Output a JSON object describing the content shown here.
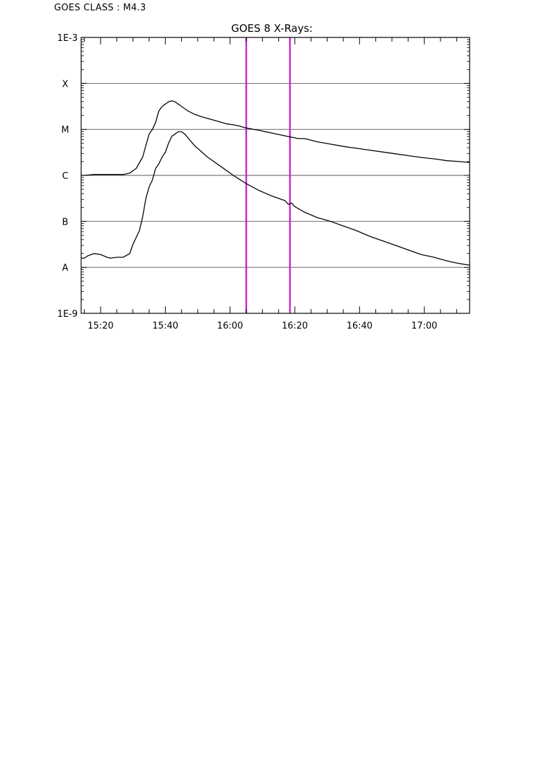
{
  "goes_class": {
    "label": "GOES CLASS : M4.3"
  },
  "chart_data": {
    "type": "line",
    "title": "GOES 8 X-Rays:",
    "xlabel": "",
    "ylabel": "",
    "x_tick_labels": [
      "15:20",
      "15:40",
      "16:00",
      "16:20",
      "16:40",
      "17:00"
    ],
    "x_tick_minutes": [
      920,
      940,
      960,
      980,
      1000,
      1020
    ],
    "xlim_minutes": [
      914,
      1034
    ],
    "yscale": "log",
    "ylim_exp": [
      -9,
      -3
    ],
    "y_tick_labels": [
      {
        "exp": -3,
        "label": "1E-3"
      },
      {
        "exp": -4,
        "label": "X"
      },
      {
        "exp": -5,
        "label": "M"
      },
      {
        "exp": -6,
        "label": "C"
      },
      {
        "exp": -7,
        "label": "B"
      },
      {
        "exp": -8,
        "label": "A"
      },
      {
        "exp": -9,
        "label": "1E-9"
      }
    ],
    "grid": "horizontal at class boundaries",
    "series": [
      {
        "color": "#000000",
        "t": [
          914,
          915,
          918,
          921,
          924,
          927,
          929,
          931,
          933,
          934,
          935,
          936,
          937,
          938,
          939,
          940,
          941,
          942,
          943,
          944,
          945,
          947,
          949,
          951,
          955,
          959,
          961,
          963,
          965,
          969,
          973,
          977,
          981,
          983,
          987,
          991,
          995,
          999,
          1003,
          1007,
          1011,
          1015,
          1019,
          1023,
          1027,
          1031,
          1034
        ],
        "y_exp": [
          -6,
          -6,
          -5.98,
          -5.98,
          -5.98,
          -5.98,
          -5.95,
          -5.85,
          -5.6,
          -5.35,
          -5.1,
          -5.0,
          -4.85,
          -4.6,
          -4.5,
          -4.45,
          -4.4,
          -4.38,
          -4.4,
          -4.45,
          -4.5,
          -4.6,
          -4.67,
          -4.72,
          -4.8,
          -4.88,
          -4.9,
          -4.93,
          -4.97,
          -5.02,
          -5.08,
          -5.14,
          -5.2,
          -5.2,
          -5.27,
          -5.32,
          -5.37,
          -5.41,
          -5.45,
          -5.49,
          -5.53,
          -5.57,
          -5.61,
          -5.64,
          -5.68,
          -5.7,
          -5.72
        ]
      },
      {
        "color": "#000000",
        "t": [
          914,
          915,
          916,
          918,
          920,
          922,
          923,
          925,
          927,
          929,
          930,
          932,
          933,
          934,
          935,
          936,
          937,
          938,
          939,
          940,
          941,
          942,
          943,
          944,
          945,
          946,
          949,
          953,
          957,
          961,
          965,
          969,
          973,
          977,
          978,
          979,
          980,
          983,
          987,
          991,
          995,
          999,
          1003,
          1007,
          1011,
          1015,
          1019,
          1023,
          1027,
          1031,
          1034
        ],
        "y_exp": [
          -7.8,
          -7.8,
          -7.75,
          -7.7,
          -7.72,
          -7.78,
          -7.8,
          -7.78,
          -7.78,
          -7.7,
          -7.5,
          -7.2,
          -6.9,
          -6.5,
          -6.25,
          -6.1,
          -5.85,
          -5.75,
          -5.6,
          -5.5,
          -5.3,
          -5.15,
          -5.1,
          -5.05,
          -5.05,
          -5.1,
          -5.35,
          -5.6,
          -5.8,
          -6.0,
          -6.18,
          -6.33,
          -6.45,
          -6.55,
          -6.63,
          -6.6,
          -6.68,
          -6.8,
          -6.92,
          -7.0,
          -7.1,
          -7.2,
          -7.32,
          -7.42,
          -7.52,
          -7.62,
          -7.72,
          -7.78,
          -7.86,
          -7.92,
          -7.95
        ]
      }
    ],
    "markers": [
      {
        "t": 965,
        "color": "#cc22cc"
      },
      {
        "t": 978.5,
        "color": "#cc22cc"
      }
    ]
  }
}
